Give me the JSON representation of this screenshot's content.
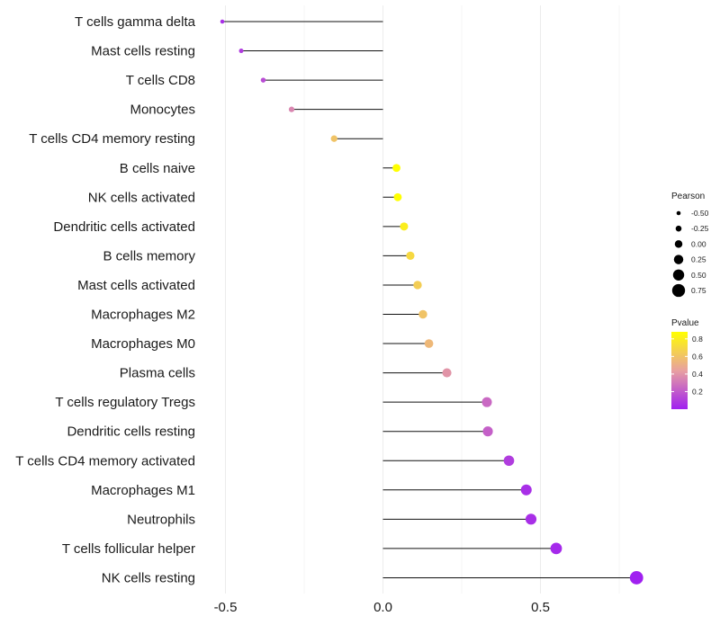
{
  "chart_data": {
    "type": "lollipop",
    "title": "",
    "xlabel": "",
    "ylabel": "",
    "xlim": [
      -0.5,
      0.8
    ],
    "x_ticks": [
      -0.5,
      0.0,
      0.5
    ],
    "x_tick_labels": [
      "-0.5",
      "0.0",
      "0.5"
    ],
    "grid": true,
    "categories": [
      "T cells gamma delta",
      "Mast cells resting",
      "T cells CD8",
      "Monocytes",
      "T cells CD4 memory resting",
      "B cells naive",
      "NK cells activated",
      "Dendritic cells activated",
      "B cells memory",
      "Mast cells activated",
      "Macrophages M2",
      "Macrophages M0",
      "Plasma cells",
      "T cells regulatory  Tregs",
      "Dendritic cells resting",
      "T cells CD4 memory activated",
      "Macrophages M1",
      "Neutrophils",
      "T cells follicular helper",
      "NK cells resting"
    ],
    "pearson": [
      -0.51,
      -0.45,
      -0.38,
      -0.29,
      -0.155,
      0.043,
      0.047,
      0.067,
      0.087,
      0.11,
      0.127,
      0.146,
      0.203,
      0.33,
      0.333,
      0.4,
      0.455,
      0.47,
      0.55,
      0.805
    ],
    "pvalue": [
      0.05,
      0.1,
      0.15,
      0.35,
      0.6,
      0.88,
      0.88,
      0.8,
      0.7,
      0.65,
      0.6,
      0.55,
      0.4,
      0.25,
      0.22,
      0.1,
      0.05,
      0.05,
      0.03,
      0.0
    ],
    "legend": {
      "size": {
        "title": "Pearson",
        "values": [
          -0.5,
          -0.25,
          0.0,
          0.25,
          0.5,
          0.75
        ],
        "labels": [
          "-0.50",
          "-0.25",
          "0.00",
          "0.25",
          "0.50",
          "0.75"
        ]
      },
      "color": {
        "title": "Pvalue",
        "range": [
          0.0,
          0.88
        ],
        "ticks": [
          0.2,
          0.4,
          0.6,
          0.8
        ],
        "tick_labels": [
          "0.2",
          "0.4",
          "0.6",
          "0.8"
        ],
        "low_color": "#a020f0",
        "mid_color": "#e8a0a0",
        "high_color": "#ffff00"
      },
      "placement": "right"
    }
  }
}
